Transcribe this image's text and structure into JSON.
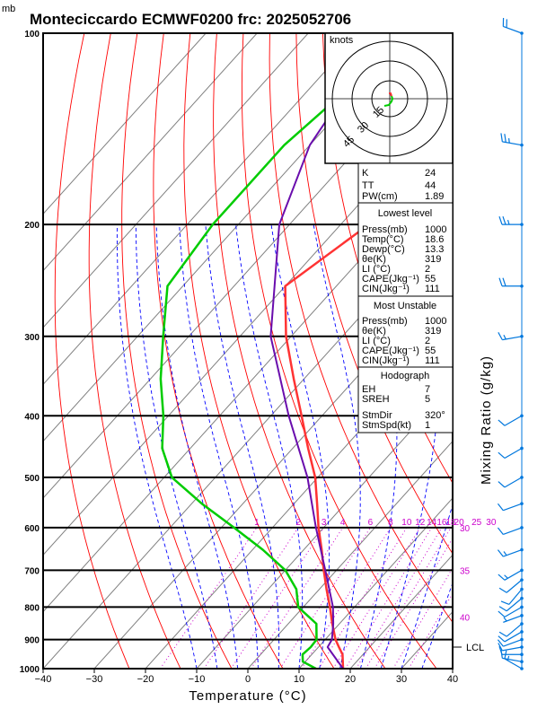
{
  "header": {
    "title": "Monteciccardo ECMWF0200 frc: 2025052706",
    "pressure_unit": "mb"
  },
  "hodograph": {
    "unit": "knots",
    "ring_labels": [
      "15",
      "30",
      "45"
    ]
  },
  "indices": {
    "top": [
      {
        "label": "K",
        "value": "24"
      },
      {
        "label": "TT",
        "value": "44"
      },
      {
        "label": "PW(cm)",
        "value": "1.89"
      }
    ],
    "lowest_title": "Lowest level",
    "lowest": [
      {
        "label": "Press(mb)",
        "value": "1000"
      },
      {
        "label": "Temp(°C)",
        "value": "18.6"
      },
      {
        "label": "Dewp(°C)",
        "value": "13.3"
      },
      {
        "label": "θe(K)",
        "value": "319"
      },
      {
        "label": "LI (°C)",
        "value": "2"
      },
      {
        "label": "CAPE(Jkg⁻¹)",
        "value": "55"
      },
      {
        "label": "CIN(Jkg⁻¹)",
        "value": "111"
      }
    ],
    "mu_title": "Most Unstable",
    "mu": [
      {
        "label": "Press(mb)",
        "value": "1000"
      },
      {
        "label": "θe(K)",
        "value": "319"
      },
      {
        "label": "LI (°C)",
        "value": "2"
      },
      {
        "label": "CAPE(Jkg⁻¹)",
        "value": "55"
      },
      {
        "label": "CIN(Jkg⁻¹)",
        "value": "111"
      }
    ],
    "hodo_title": "Hodograph",
    "hodo": [
      {
        "label": "EH",
        "value": "7"
      },
      {
        "label": "SREH",
        "value": "5"
      },
      {
        "label": "StmDir",
        "value": "320°"
      },
      {
        "label": "StmSpd(kt)",
        "value": "1"
      }
    ]
  },
  "lcl_label": "LCL",
  "right_axis_label": "Mixing Ratio (g/kg)",
  "colors": {
    "isotherm": "#808080",
    "dry_adiabat": "#ff0000",
    "moist_adiabat": "#0000ff",
    "mixing_ratio": "#cc00cc",
    "temperature": "#ff3333",
    "dewpoint": "#00cc00",
    "parcel": "#6a0dad",
    "wind": "#0077dd"
  },
  "chart_data": {
    "type": "skew-t",
    "xlabel": "Temperature (°C)",
    "ylabel": "mb",
    "x_ticks": [
      "−40",
      "−30",
      "−20",
      "−10",
      "0",
      "10",
      "20",
      "30",
      "40"
    ],
    "x_values": [
      -40,
      -30,
      -20,
      -10,
      0,
      10,
      20,
      30,
      40
    ],
    "xlim": [
      -40,
      40
    ],
    "ylim": [
      1000,
      100
    ],
    "y_log": true,
    "pressure_levels": [
      1000,
      900,
      800,
      700,
      600,
      500,
      400,
      300,
      200,
      100
    ],
    "pressure_ticks": [
      "1000",
      "900",
      "800",
      "700",
      "600",
      "500",
      "400",
      "300",
      "200",
      "100"
    ],
    "mixing_ratio_values": [
      1,
      2,
      3,
      4,
      6,
      8,
      10,
      12,
      14,
      16,
      18,
      20,
      25,
      30
    ],
    "mixing_ratio_labels": [
      "1",
      "2",
      "3",
      "4",
      "6",
      "8",
      "10",
      "12",
      "14",
      "16",
      "18",
      "20",
      "25",
      "30"
    ],
    "theta_e_labels": [
      "30",
      "35",
      "40"
    ],
    "theta_e_values": [
      30,
      35,
      40
    ],
    "series": [
      {
        "key": "temperature",
        "p": [
          1000,
          950,
          925,
          900,
          850,
          800,
          750,
          700,
          650,
          600,
          550,
          500,
          450,
          400,
          350,
          300,
          250,
          200,
          150,
          100
        ],
        "t": [
          18.6,
          16,
          14,
          12,
          8.6,
          5.2,
          1.4,
          -2.5,
          -6.5,
          -11,
          -15.5,
          -20.5,
          -27,
          -34,
          -42,
          -51,
          -60,
          -54.5,
          -55,
          -54
        ]
      },
      {
        "key": "dewpoint",
        "p": [
          1000,
          975,
          950,
          925,
          900,
          850,
          800,
          750,
          700,
          650,
          600,
          550,
          500,
          450,
          400,
          350,
          300,
          250,
          200,
          150,
          100
        ],
        "t": [
          13.3,
          9.5,
          8.2,
          8.5,
          8.3,
          5.5,
          -1,
          -4.5,
          -10,
          -18,
          -27.5,
          -38,
          -48.5,
          -55.5,
          -61,
          -68,
          -75,
          -83,
          -85,
          -85,
          -80
        ]
      },
      {
        "key": "parcel",
        "p": [
          1000,
          925,
          900,
          850,
          800,
          700,
          600,
          500,
          400,
          300,
          200,
          150,
          100
        ],
        "t": [
          18.6,
          11.8,
          11.3,
          8.8,
          5.8,
          -2.2,
          -11.5,
          -22,
          -36.5,
          -54,
          -72,
          -80,
          -85
        ]
      }
    ],
    "wind": {
      "p": [
        1000,
        975,
        950,
        925,
        900,
        875,
        850,
        825,
        800,
        775,
        750,
        725,
        700,
        650,
        600,
        550,
        500,
        450,
        400,
        300,
        250,
        200,
        150,
        100
      ],
      "speed_kt": [
        15,
        10,
        10,
        10,
        10,
        10,
        10,
        5,
        10,
        10,
        10,
        10,
        15,
        15,
        10,
        10,
        10,
        10,
        10,
        15,
        20,
        25,
        25,
        20
      ],
      "dir_deg": [
        300,
        280,
        270,
        260,
        250,
        240,
        230,
        250,
        240,
        230,
        220,
        230,
        240,
        250,
        250,
        250,
        240,
        240,
        240,
        260,
        270,
        270,
        280,
        290
      ]
    }
  }
}
